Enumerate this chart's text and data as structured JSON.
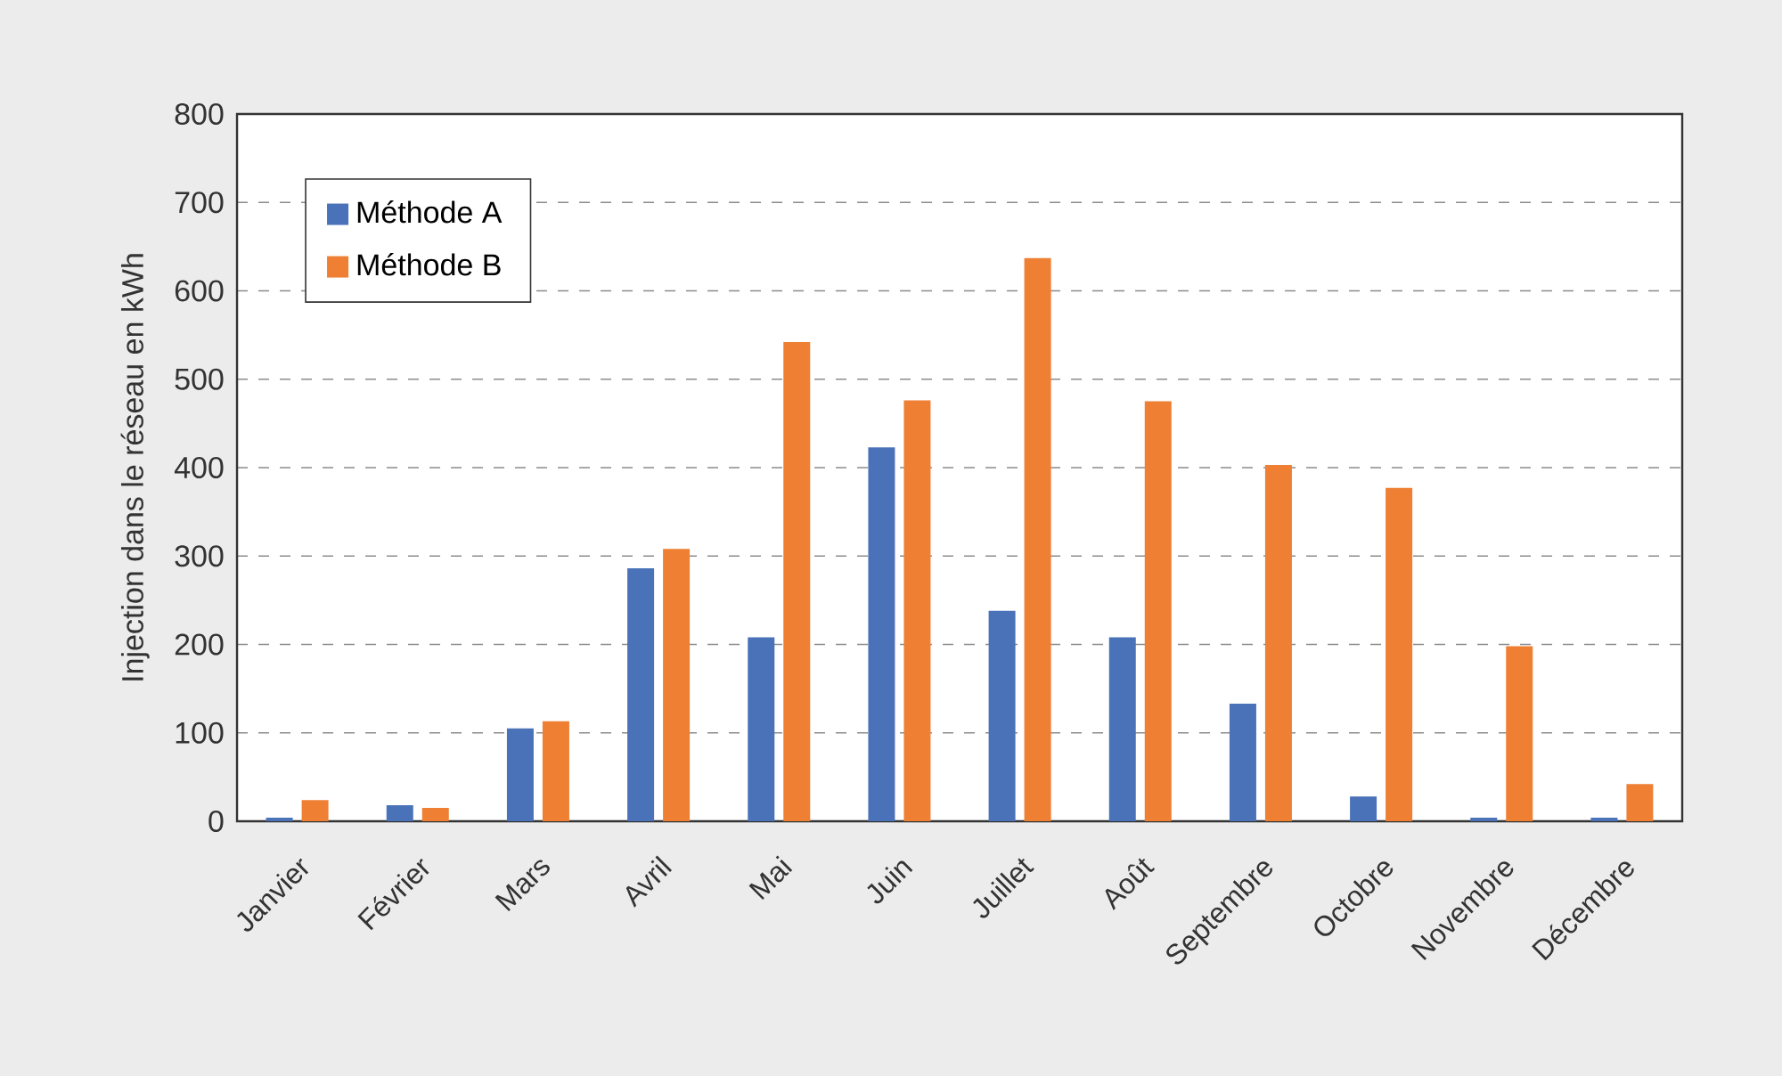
{
  "chart_data": {
    "type": "bar",
    "ylabel": "Injection dans le réseau en kWh",
    "categories": [
      "Janvier",
      "Février",
      "Mars",
      "Avril",
      "Mai",
      "Juin",
      "Juillet",
      "Août",
      "Septembre",
      "Octobre",
      "Novembre",
      "Décembre"
    ],
    "series": [
      {
        "name": "Méthode A",
        "color": "#4a72b8",
        "values": [
          4,
          18,
          105,
          286,
          208,
          423,
          238,
          208,
          133,
          28,
          4,
          4
        ]
      },
      {
        "name": "Méthode B",
        "color": "#ee7f33",
        "values": [
          24,
          15,
          113,
          308,
          542,
          476,
          637,
          475,
          403,
          377,
          198,
          42
        ]
      }
    ],
    "ylim": [
      0,
      800
    ],
    "yticks": [
      0,
      100,
      200,
      300,
      400,
      500,
      600,
      700,
      800
    ],
    "grid": "y",
    "legend": "top left"
  }
}
